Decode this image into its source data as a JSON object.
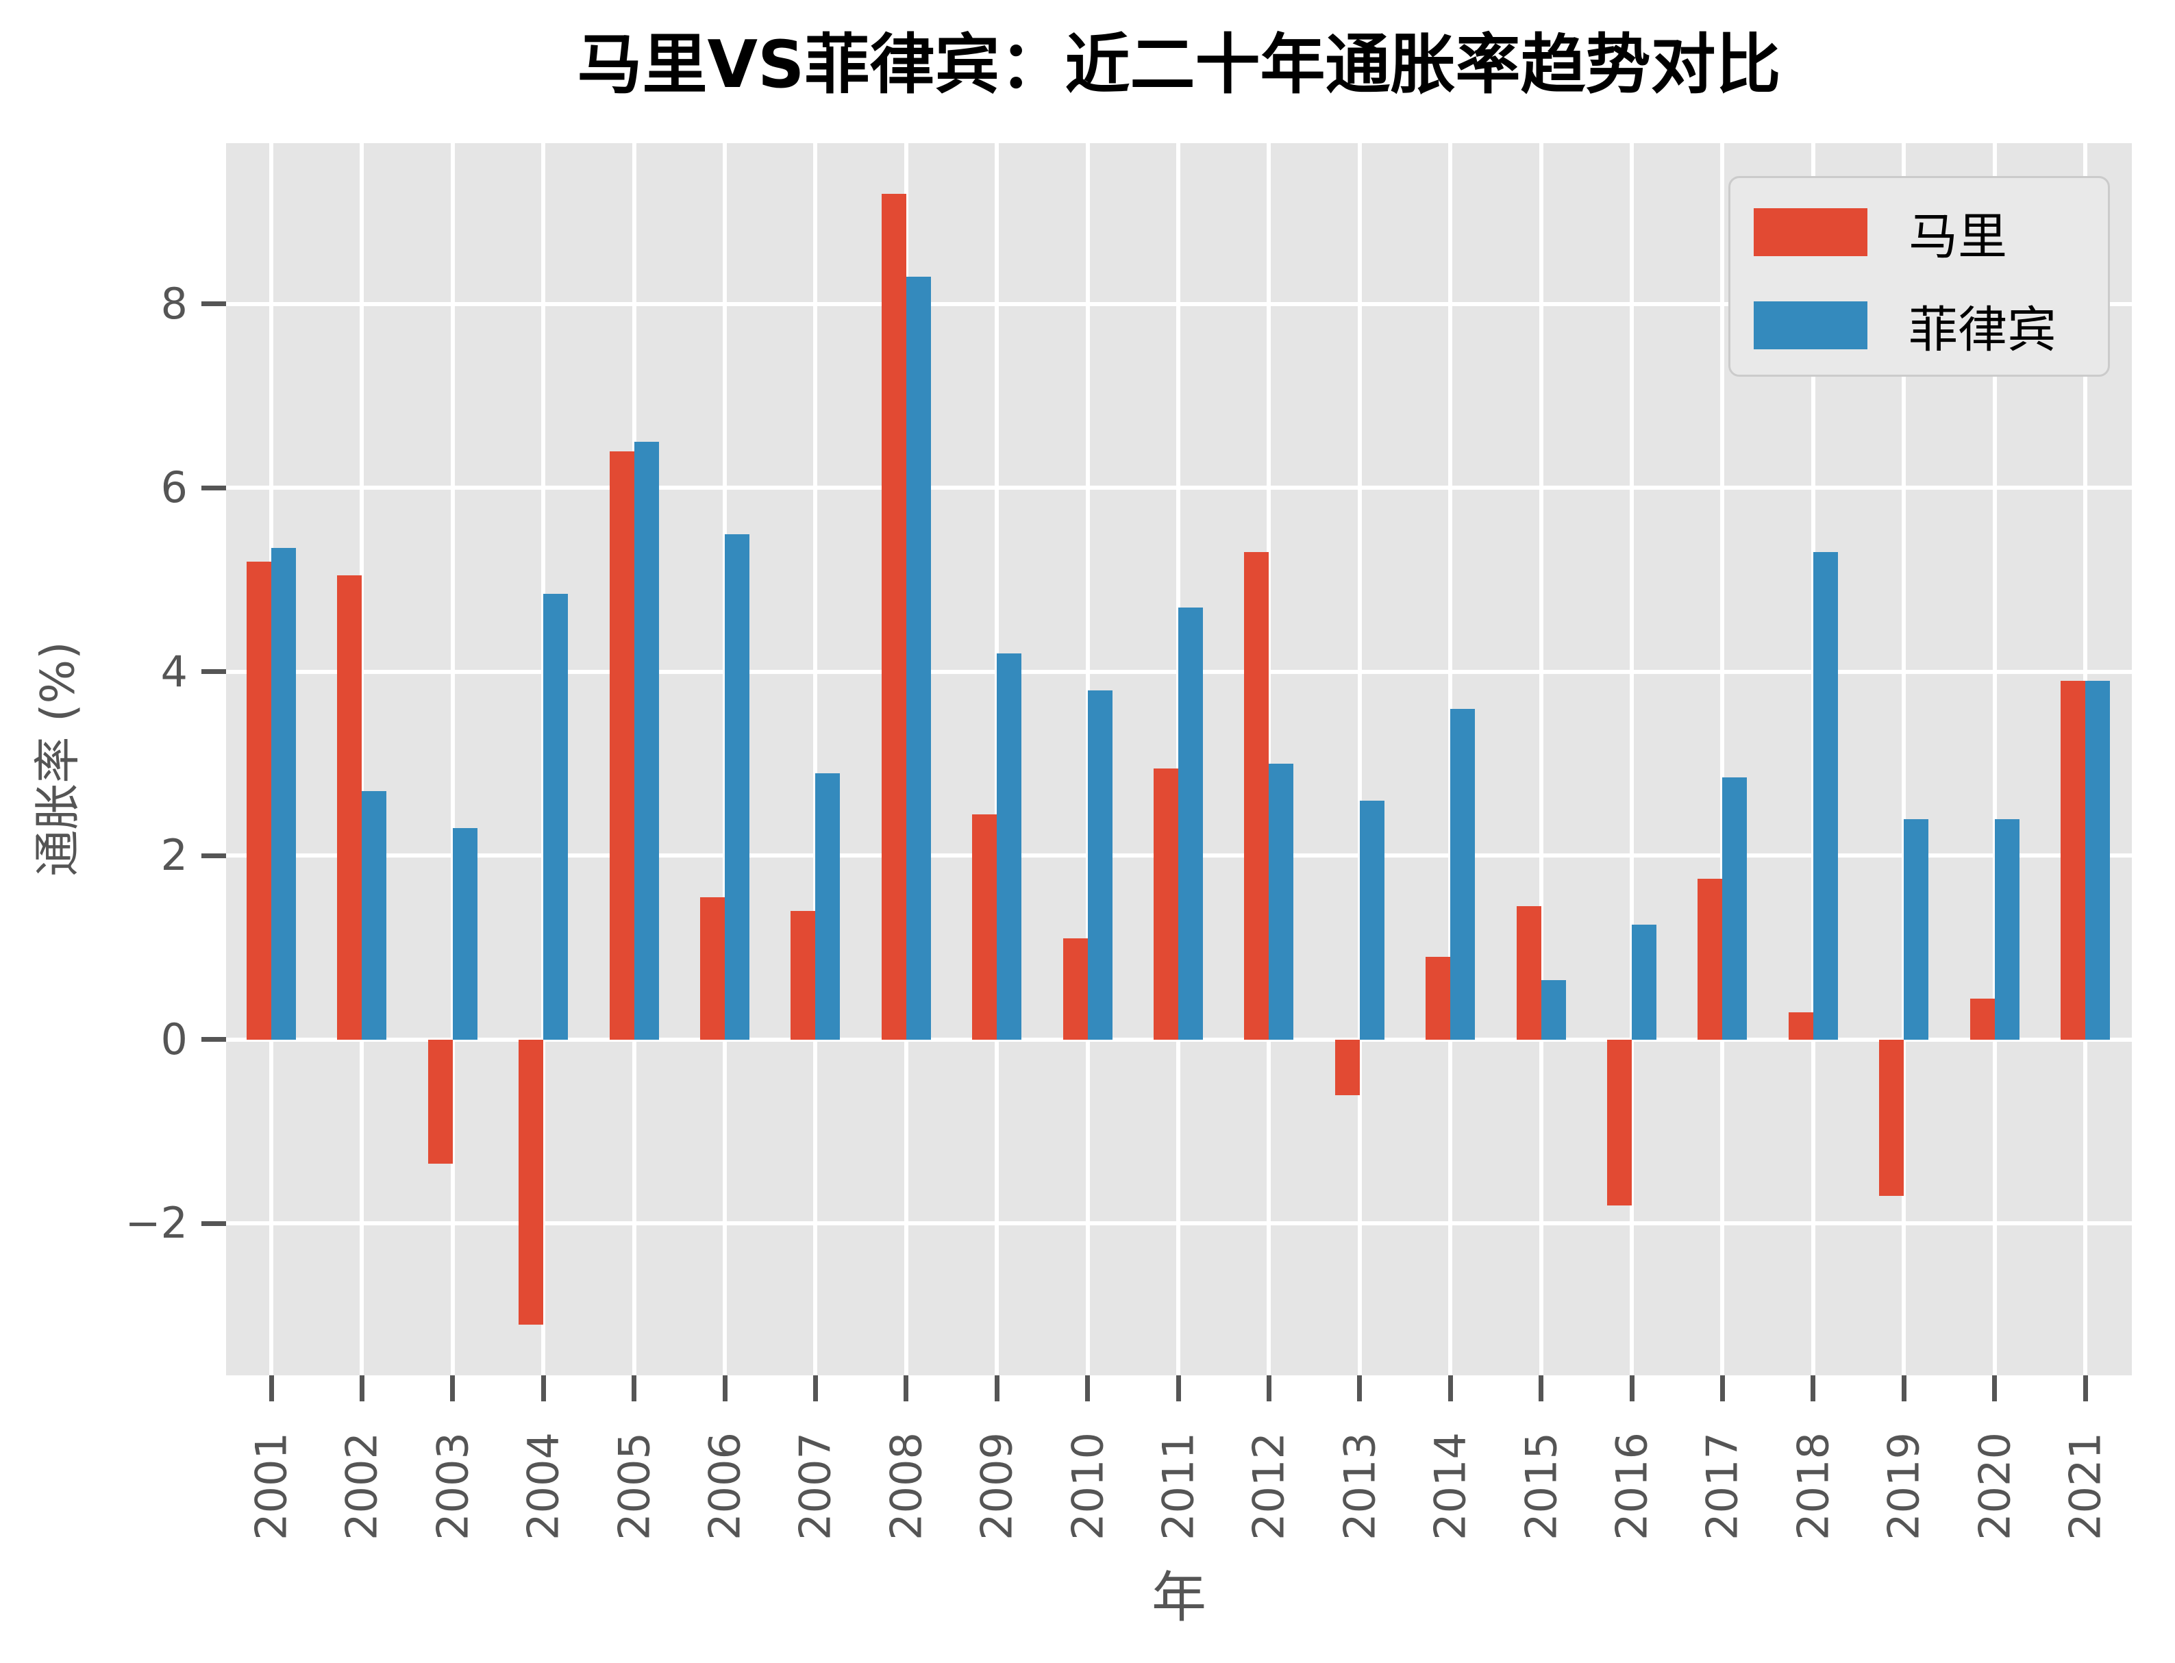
{
  "title": "马里VS菲律宾：近二十年通胀率趋势对比",
  "axes": {
    "x_label": "年",
    "y_label": "通胀率 (%)",
    "y_ticks": [
      8,
      6,
      4,
      2,
      0,
      -2
    ]
  },
  "legend": {
    "position": "upper right",
    "entries": [
      {
        "label": "马里",
        "color": "#E24A33"
      },
      {
        "label": "菲律宾",
        "color": "#348ABD"
      }
    ]
  },
  "colors": {
    "figure_background": "#FFFFFF",
    "plot_background": "#E5E5E5",
    "gridline": "#FFFFFF",
    "tick_text": "#555555",
    "title_text": "#000000",
    "mali_red": "#E24A33",
    "philippines_blue": "#348ABD"
  },
  "chart_data": {
    "type": "bar",
    "title": "马里VS菲律宾：近二十年通胀率趋势对比",
    "xlabel": "年",
    "ylabel": "通胀率 (%)",
    "grid": true,
    "legend_position": "upper right",
    "ylim": [
      -3.65,
      9.75
    ],
    "y_tick_values": [
      8,
      6,
      4,
      2,
      0,
      -2
    ],
    "categories": [
      2001,
      2002,
      2003,
      2004,
      2005,
      2006,
      2007,
      2008,
      2009,
      2010,
      2011,
      2012,
      2013,
      2014,
      2015,
      2016,
      2017,
      2018,
      2019,
      2020,
      2021
    ],
    "series": [
      {
        "name": "马里",
        "color": "#E24A33",
        "values": [
          5.2,
          5.05,
          -1.35,
          -3.1,
          6.4,
          1.55,
          1.4,
          9.2,
          2.45,
          1.1,
          2.95,
          5.3,
          -0.6,
          0.9,
          1.45,
          -1.8,
          1.75,
          0.3,
          -1.7,
          0.45,
          3.9
        ]
      },
      {
        "name": "菲律宾",
        "color": "#348ABD",
        "values": [
          5.35,
          2.7,
          2.3,
          4.85,
          6.5,
          5.5,
          2.9,
          8.3,
          4.2,
          3.8,
          4.7,
          3.0,
          2.6,
          3.6,
          0.65,
          1.25,
          2.85,
          5.3,
          2.4,
          2.4,
          3.9
        ]
      }
    ]
  }
}
